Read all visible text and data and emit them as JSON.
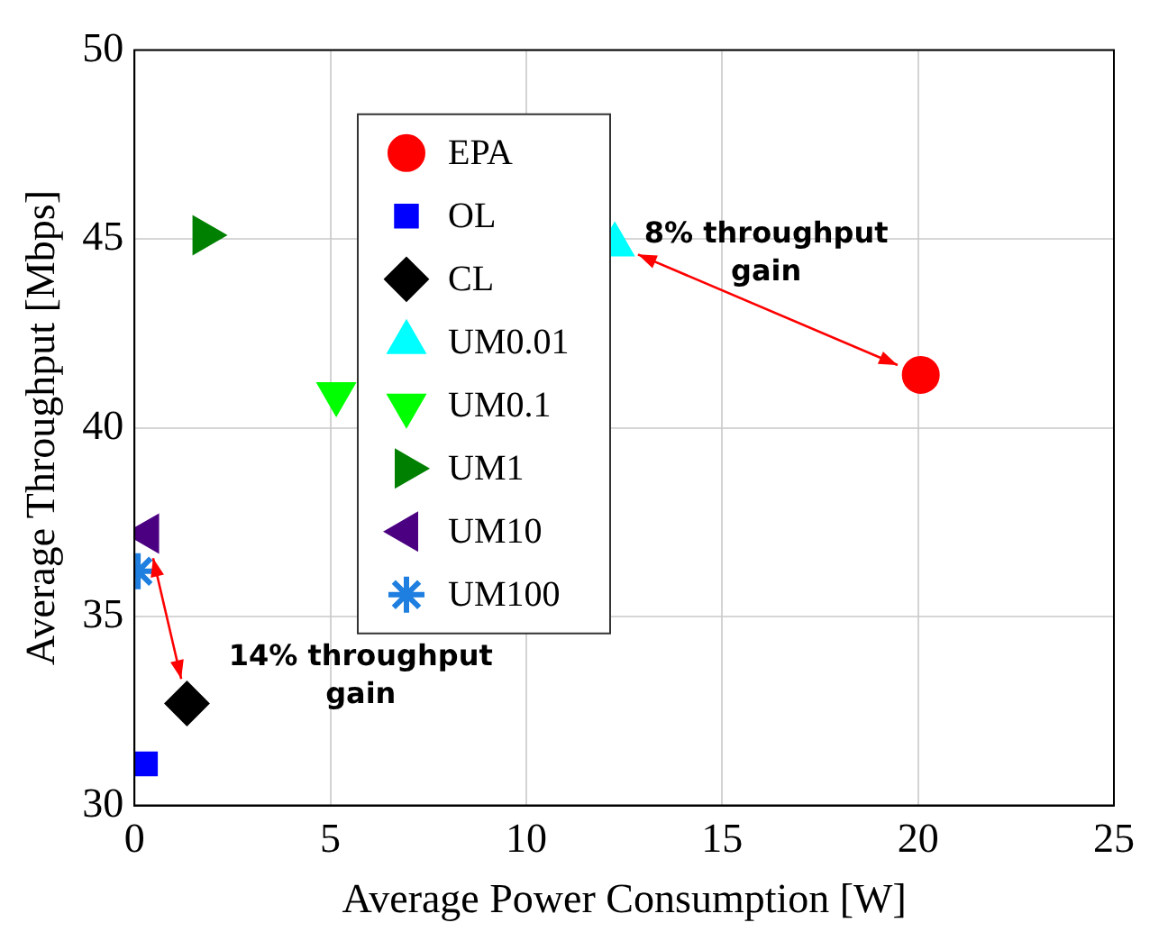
{
  "chart_data": {
    "type": "scatter",
    "xlabel": "Average Power Consumption [W]",
    "ylabel": "Average Throughput [Mbps]",
    "xlim": [
      0,
      25
    ],
    "xticks": [
      0,
      5,
      10,
      15,
      20,
      25
    ],
    "ylim": [
      30,
      50
    ],
    "yticks": [
      30,
      35,
      40,
      45,
      50
    ],
    "grid": true,
    "legend": "top left",
    "series": [
      {
        "name": "EPA",
        "color": "#ff0000",
        "marker": "circle",
        "x": [
          20.07
        ],
        "values": [
          41.4
        ]
      },
      {
        "name": "OL",
        "color": "#0000ff",
        "marker": "square",
        "x": [
          0.28
        ],
        "values": [
          31.1
        ]
      },
      {
        "name": "CL",
        "color": "#000000",
        "marker": "diamond",
        "x": [
          1.34
        ],
        "values": [
          32.7
        ]
      },
      {
        "name": "UM0.01",
        "color": "#00ffff",
        "marker": "triangle",
        "x": [
          12.26
        ],
        "values": [
          44.85
        ]
      },
      {
        "name": "UM0.1",
        "color": "#00ff00",
        "marker": "triangle-down",
        "x": [
          5.15
        ],
        "values": [
          40.9
        ]
      },
      {
        "name": "UM1",
        "color": "#008000",
        "marker": "triangle-right",
        "x": [
          1.78
        ],
        "values": [
          45.1
        ]
      },
      {
        "name": "UM10",
        "color": "#4b0082",
        "marker": "triangle-left",
        "x": [
          0.33
        ],
        "values": [
          37.2
        ]
      },
      {
        "name": "UM100",
        "color": "#1e7fe0",
        "marker": "cross",
        "x": [
          0.09
        ],
        "values": [
          36.2
        ]
      }
    ],
    "annotations": [
      {
        "text": "8% throughput gain",
        "x": 12.26,
        "y": 44.85
      },
      {
        "text": "14% throughput gain",
        "x": 1.34,
        "y": 32.7
      }
    ]
  }
}
